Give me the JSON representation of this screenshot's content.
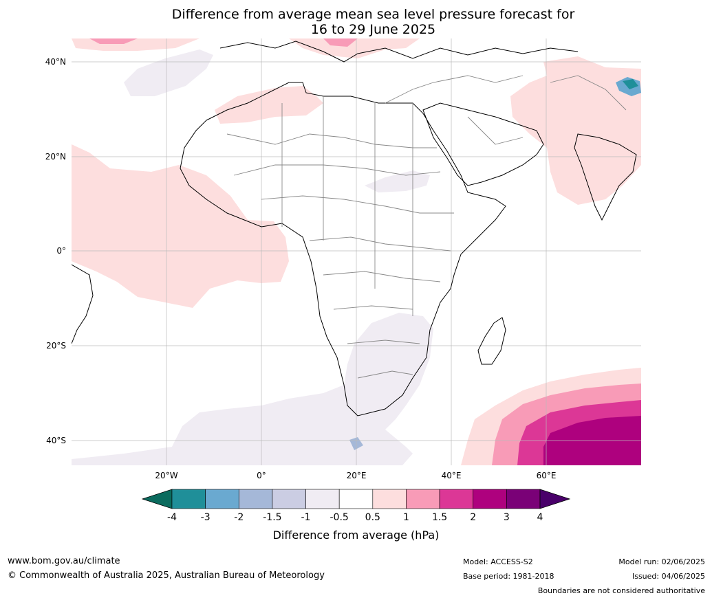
{
  "title": {
    "line1": "Difference from average mean sea level pressure forecast for",
    "line2": "16 to 29 June 2025"
  },
  "axes": {
    "lat_ticks": [
      "40°N",
      "20°N",
      "0°",
      "20°S",
      "40°S"
    ],
    "lon_ticks": [
      "20°W",
      "0°",
      "20°E",
      "40°E",
      "60°E"
    ]
  },
  "colorbar": {
    "labels": [
      "-4",
      "-3",
      "-2",
      "-1.5",
      "-1",
      "-0.5",
      "0.5",
      "1",
      "1.5",
      "2",
      "3",
      "4"
    ],
    "colors": [
      "#0b6b5e",
      "#1f8f99",
      "#6aa9d0",
      "#a5b8d8",
      "#cbcde3",
      "#f0ecf3",
      "#ffffff",
      "#fddede",
      "#f89bb7",
      "#dc3796",
      "#ae017e",
      "#7a0177",
      "#49006a"
    ],
    "title": "Difference from average (hPa)"
  },
  "footer": {
    "website": "www.bom.gov.au/climate",
    "copyright": "© Commonwealth of Australia 2025, Australian Bureau of Meteorology",
    "model": "Model: ACCESS-S2",
    "base_period": "Base period: 1981-2018",
    "model_run": "Model run: 02/06/2025",
    "issued": "Issued: 04/06/2025",
    "disclaimer": "Boundaries are not considered authoritative"
  }
}
